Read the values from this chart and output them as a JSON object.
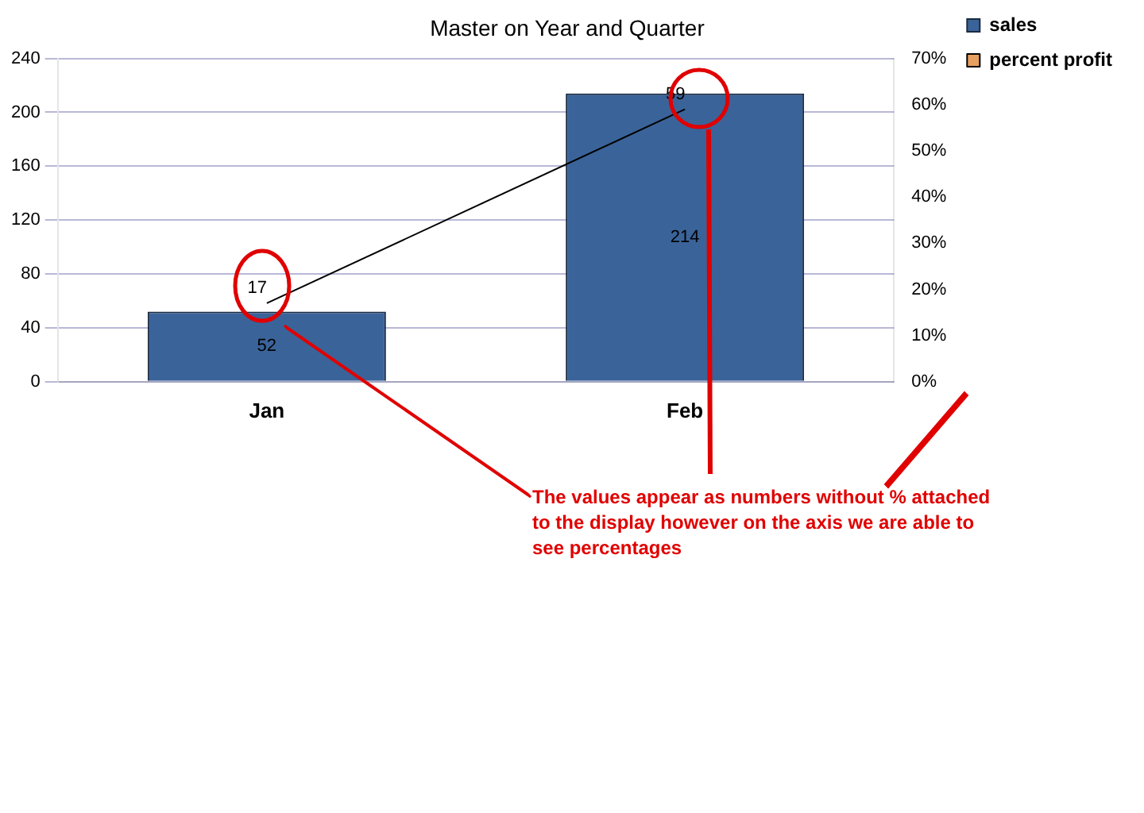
{
  "chart_data": {
    "type": "bar",
    "title": "Master on Year and Quarter",
    "categories": [
      "Jan",
      "Feb"
    ],
    "series": [
      {
        "name": "sales",
        "color": "#3a6399",
        "values": [
          52,
          214
        ]
      },
      {
        "name": "percent profit",
        "type": "line",
        "axis": "y2",
        "color": "#000000",
        "values": [
          17,
          59
        ]
      }
    ],
    "ylim": [
      0,
      240
    ],
    "yticks": [
      0,
      40,
      80,
      120,
      160,
      200,
      240
    ],
    "y2lim": [
      0,
      70
    ],
    "y2ticks": [
      {
        "value": 0,
        "label": "0%"
      },
      {
        "value": 10,
        "label": "10%"
      },
      {
        "value": 20,
        "label": "20%"
      },
      {
        "value": 30,
        "label": "30%"
      },
      {
        "value": 40,
        "label": "40%"
      },
      {
        "value": 50,
        "label": "50%"
      },
      {
        "value": 60,
        "label": "60%"
      },
      {
        "value": 70,
        "label": "70%"
      }
    ],
    "grid": "y",
    "legend": "top right",
    "marker": "none",
    "data_labels": true,
    "annotations": [
      "The values appear as numbers without % attached to the display however on the axis we are able to see percentages"
    ]
  }
}
